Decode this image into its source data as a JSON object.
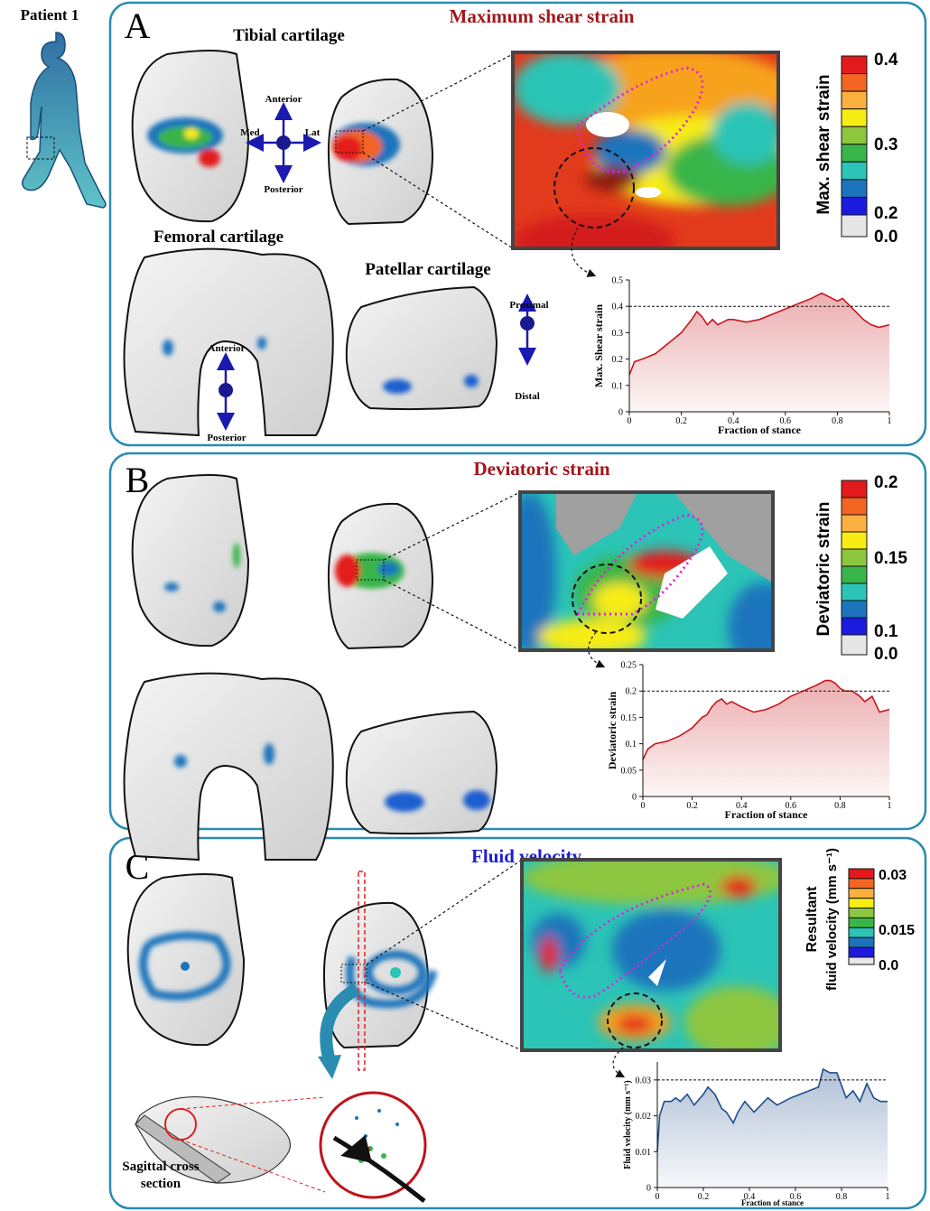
{
  "figure": {
    "patient_label": "Patient 1",
    "panels": [
      {
        "letter": "A",
        "title": "Maximum shear strain",
        "labels": [
          "Tibial cartilage",
          "Femoral cartilage",
          "Patellar cartilage",
          "Anterior",
          "Posterior",
          "Med",
          "Lat",
          "Anterior",
          "Posterior",
          "Proximal",
          "Distal"
        ],
        "colorbar": {
          "title": "Max. shear strain",
          "labels": [
            "0.4",
            "0.3",
            "0.2",
            "0.0"
          ]
        }
      },
      {
        "letter": "B",
        "title": "Deviatoric strain",
        "colorbar": {
          "title": "Deviatoric strain",
          "labels": [
            "0.2",
            "0.15",
            "0.1",
            "0.0"
          ]
        }
      },
      {
        "letter": "C",
        "title": "Fluid velocity",
        "section_label": [
          "Sagittal cross",
          "section"
        ],
        "colorbar": {
          "title": [
            "Resultant",
            "fluid velocity (mm s⁻¹)"
          ],
          "labels": [
            "0.03",
            "0.015",
            "0.0"
          ]
        }
      }
    ]
  },
  "chart_data": [
    {
      "type": "line",
      "xlabel": "Fraction of stance",
      "ylabel": "Max. Shear strain",
      "color": "#c8161d",
      "x": [
        0,
        0.02,
        0.05,
        0.1,
        0.15,
        0.2,
        0.24,
        0.26,
        0.28,
        0.3,
        0.32,
        0.34,
        0.36,
        0.38,
        0.4,
        0.45,
        0.5,
        0.55,
        0.6,
        0.65,
        0.7,
        0.74,
        0.76,
        0.78,
        0.8,
        0.82,
        0.85,
        0.88,
        0.9,
        0.93,
        0.96,
        1.0
      ],
      "values": [
        0.14,
        0.19,
        0.2,
        0.22,
        0.26,
        0.3,
        0.35,
        0.38,
        0.36,
        0.33,
        0.35,
        0.33,
        0.34,
        0.35,
        0.35,
        0.34,
        0.35,
        0.37,
        0.39,
        0.41,
        0.43,
        0.45,
        0.44,
        0.43,
        0.42,
        0.43,
        0.4,
        0.37,
        0.35,
        0.33,
        0.32,
        0.33
      ],
      "xlim": [
        0,
        1
      ],
      "ylim": [
        0,
        0.5
      ],
      "xticks": [
        0,
        0.2,
        0.4,
        0.6,
        0.8,
        1
      ],
      "yticks": [
        0,
        0.1,
        0.2,
        0.3,
        0.4,
        0.5
      ],
      "reference_line": 0.4
    },
    {
      "type": "line",
      "xlabel": "Fraction of stance",
      "ylabel": "Deviatoric strain",
      "color": "#c8161d",
      "x": [
        0,
        0.02,
        0.05,
        0.1,
        0.15,
        0.2,
        0.24,
        0.26,
        0.28,
        0.3,
        0.32,
        0.34,
        0.36,
        0.38,
        0.4,
        0.45,
        0.5,
        0.55,
        0.6,
        0.65,
        0.7,
        0.74,
        0.76,
        0.78,
        0.8,
        0.82,
        0.85,
        0.88,
        0.9,
        0.93,
        0.96,
        1.0
      ],
      "values": [
        0.07,
        0.09,
        0.1,
        0.105,
        0.115,
        0.13,
        0.15,
        0.155,
        0.17,
        0.18,
        0.185,
        0.175,
        0.18,
        0.175,
        0.17,
        0.16,
        0.165,
        0.175,
        0.19,
        0.2,
        0.21,
        0.22,
        0.22,
        0.215,
        0.205,
        0.2,
        0.2,
        0.19,
        0.18,
        0.19,
        0.16,
        0.165
      ],
      "xlim": [
        0,
        1
      ],
      "ylim": [
        0,
        0.25
      ],
      "xticks": [
        0,
        0.2,
        0.4,
        0.6,
        0.8,
        1
      ],
      "yticks": [
        0,
        0.05,
        0.1,
        0.15,
        0.2,
        0.25
      ],
      "reference_line": 0.2
    },
    {
      "type": "line",
      "xlabel": "Fraction of stance",
      "ylabel": "Fluid velocity (mm s⁻¹)",
      "color": "#1f4e8c",
      "x": [
        0,
        0.01,
        0.03,
        0.06,
        0.08,
        0.1,
        0.13,
        0.16,
        0.2,
        0.22,
        0.25,
        0.28,
        0.3,
        0.33,
        0.35,
        0.38,
        0.42,
        0.45,
        0.48,
        0.52,
        0.55,
        0.58,
        0.62,
        0.66,
        0.7,
        0.72,
        0.75,
        0.78,
        0.82,
        0.85,
        0.88,
        0.91,
        0.94,
        0.97,
        1.0
      ],
      "values": [
        0.01,
        0.02,
        0.024,
        0.024,
        0.025,
        0.024,
        0.026,
        0.023,
        0.026,
        0.028,
        0.026,
        0.022,
        0.021,
        0.018,
        0.021,
        0.024,
        0.021,
        0.023,
        0.025,
        0.023,
        0.024,
        0.025,
        0.026,
        0.027,
        0.028,
        0.033,
        0.032,
        0.032,
        0.025,
        0.027,
        0.024,
        0.029,
        0.025,
        0.024,
        0.024
      ],
      "xlim": [
        0,
        1
      ],
      "ylim": [
        0,
        0.035
      ],
      "xticks": [
        0,
        0.2,
        0.4,
        0.6,
        0.8,
        1
      ],
      "yticks": [
        0,
        0.01,
        0.02,
        0.03
      ],
      "reference_line": 0.03
    }
  ]
}
